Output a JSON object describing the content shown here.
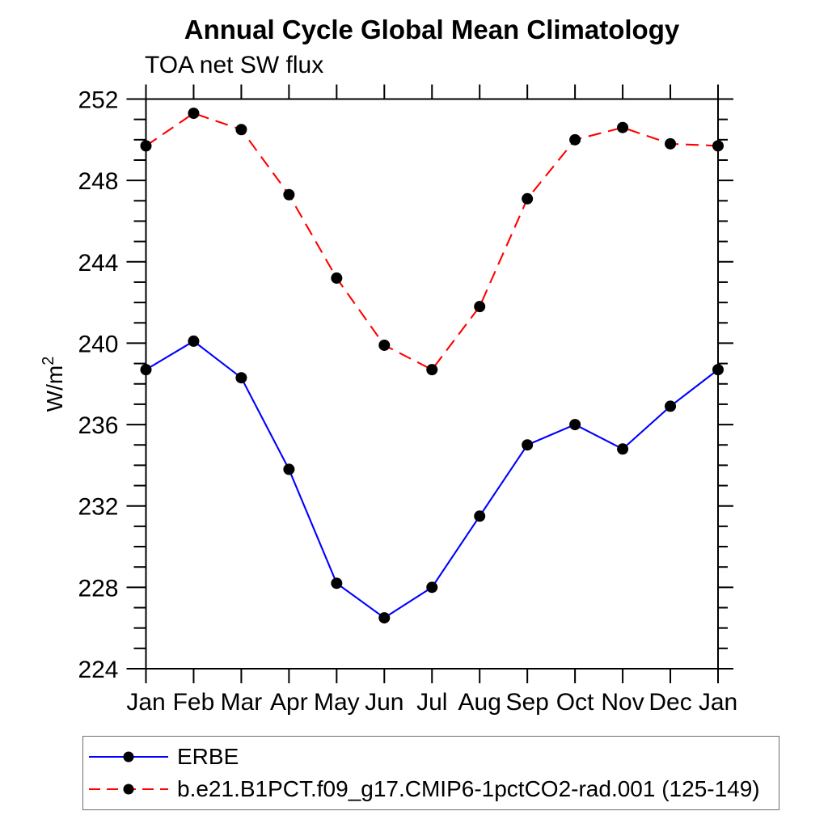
{
  "title": "Annual Cycle Global Mean Climatology",
  "subtitle": "TOA net SW flux",
  "chart_data": {
    "type": "line",
    "x_categories": [
      "Jan",
      "Feb",
      "Mar",
      "Apr",
      "May",
      "Jun",
      "Jul",
      "Aug",
      "Sep",
      "Oct",
      "Nov",
      "Dec",
      "Jan"
    ],
    "xlabel": "",
    "ylabel": "W/m^2",
    "ylabel_main": "W/m",
    "ylabel_sup": "2",
    "ylim": [
      224,
      252
    ],
    "ytick_major_step": 4,
    "ytick_minor_step": 1,
    "ytick_labels": [
      "224",
      "228",
      "232",
      "236",
      "240",
      "244",
      "248",
      "252"
    ],
    "grid": false,
    "legend_position": "bottom-left-box",
    "marker": "filled-circle",
    "marker_color": "#000000",
    "axis_color": "#000000",
    "series": [
      {
        "name": "ERBE",
        "color": "#0000ff",
        "line_style": "solid",
        "values": [
          238.7,
          240.1,
          238.3,
          233.8,
          228.2,
          226.5,
          228.0,
          231.5,
          235.0,
          236.0,
          234.8,
          236.9,
          238.7
        ]
      },
      {
        "name": "b.e21.B1PCT.f09_g17.CMIP6-1pctCO2-rad.001 (125-149)",
        "color": "#ff0000",
        "line_style": "dashed",
        "values": [
          249.7,
          251.3,
          250.5,
          247.3,
          243.2,
          239.9,
          238.7,
          241.8,
          247.1,
          250.0,
          250.6,
          249.8,
          249.7
        ]
      }
    ]
  }
}
